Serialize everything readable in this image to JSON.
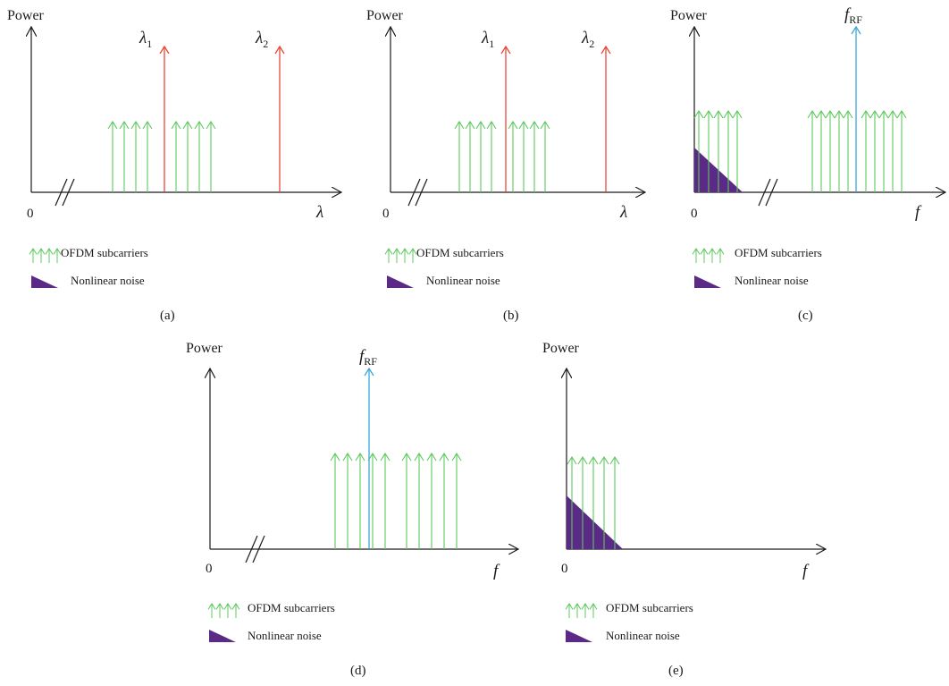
{
  "colors": {
    "axis": "#1a1a1a",
    "subcarrier": "#5cc85c",
    "optical_carrier": "#e8473a",
    "rf_carrier": "#3aa8d8",
    "noise": "#5b2a86"
  },
  "legend": {
    "subcarriers": "OFDM subcarriers",
    "noise": "Nonlinear noise"
  },
  "panels": [
    {
      "id": "a",
      "caption": "(a)",
      "ylabel": "Power",
      "origin": "0",
      "xvar": "λ",
      "carriers": [
        {
          "sym": "λ",
          "sub": "1",
          "color": "optical_carrier"
        },
        {
          "sym": "λ",
          "sub": "2",
          "color": "optical_carrier"
        }
      ]
    },
    {
      "id": "b",
      "caption": "(b)",
      "ylabel": "Power",
      "origin": "0",
      "xvar": "λ",
      "carriers": [
        {
          "sym": "λ",
          "sub": "1",
          "color": "optical_carrier"
        },
        {
          "sym": "λ",
          "sub": "2",
          "color": "optical_carrier"
        }
      ]
    },
    {
      "id": "c",
      "caption": "(c)",
      "ylabel": "Power",
      "origin": "0",
      "xvar": "f",
      "carriers": [
        {
          "sym": "f",
          "sub": "RF",
          "color": "rf_carrier"
        }
      ]
    },
    {
      "id": "d",
      "caption": "(d)",
      "ylabel": "Power",
      "origin": "0",
      "xvar": "f",
      "carriers": [
        {
          "sym": "f",
          "sub": "RF",
          "color": "rf_carrier"
        }
      ]
    },
    {
      "id": "e",
      "caption": "(e)",
      "ylabel": "Power",
      "origin": "0",
      "xvar": "f",
      "carriers": []
    }
  ]
}
